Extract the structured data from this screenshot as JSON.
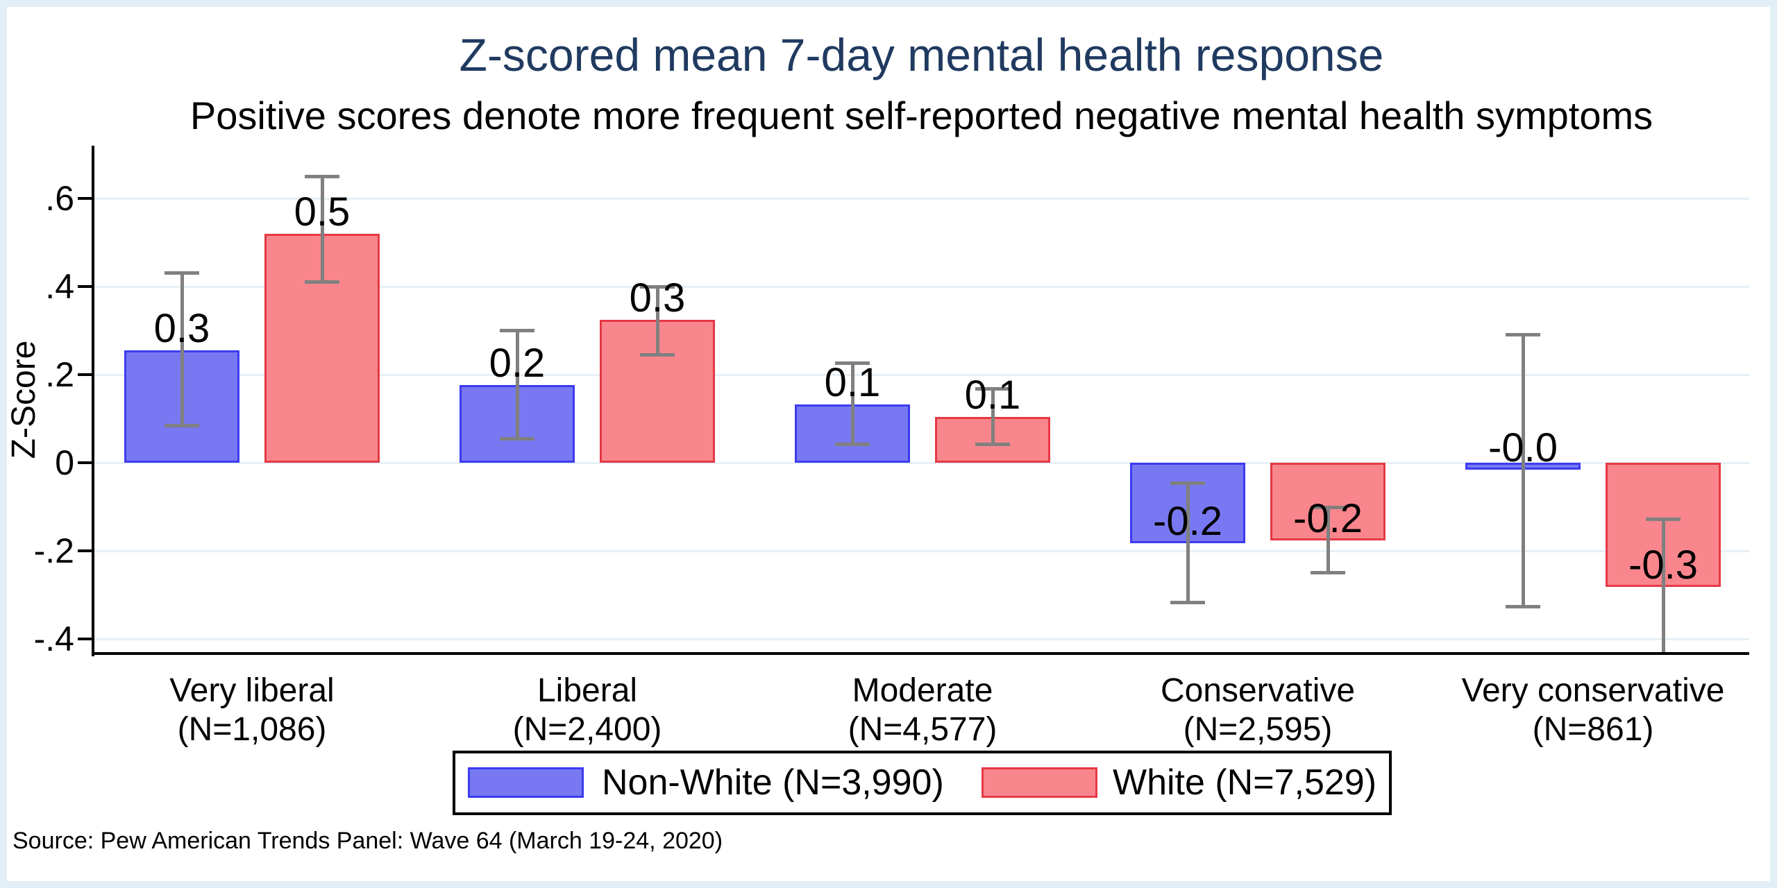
{
  "chart_data": {
    "type": "bar",
    "title": "Z-scored mean 7-day mental health response",
    "subtitle": "Positive scores denote more frequent self-reported negative mental health symptoms",
    "ylabel": "Z-Score",
    "source": "Source: Pew American Trends Panel: Wave 64 (March 19-24, 2020)",
    "grid": true,
    "legend_position": "bottom-center",
    "ylim": [
      -0.433,
      0.72
    ],
    "yticks": [
      0.6,
      0.4,
      0.2,
      0,
      -0.2,
      -0.4
    ],
    "ytick_labels": [
      ".6",
      ".4",
      ".2",
      "0",
      "-.2",
      "-.4"
    ],
    "categories": [
      {
        "label": "Very liberal",
        "n": "(N=1,086)"
      },
      {
        "label": "Liberal",
        "n": "(N=2,400)"
      },
      {
        "label": "Moderate",
        "n": "(N=4,577)"
      },
      {
        "label": "Conservative",
        "n": "(N=2,595)"
      },
      {
        "label": "Very conservative",
        "n": "(N=861)"
      }
    ],
    "series": [
      {
        "name": "Non-White (N=3,990)",
        "fill": "#7879F2",
        "border": "#3C3BF0",
        "values": [
          0.255,
          0.176,
          0.133,
          -0.183,
          -0.015
        ],
        "bar_labels": [
          "0.3",
          "0.2",
          "0.1",
          "-0.2",
          "-0.0"
        ],
        "ci_high": [
          0.43,
          0.3,
          0.226,
          -0.046,
          0.29
        ],
        "ci_low": [
          0.085,
          0.055,
          0.042,
          -0.318,
          -0.326
        ]
      },
      {
        "name": "White (N=7,529)",
        "fill": "#F9868D",
        "border": "#E53945",
        "values": [
          0.52,
          0.324,
          0.104,
          -0.176,
          -0.282
        ],
        "bar_labels": [
          "0.5",
          "0.3",
          "0.1",
          "-0.2",
          "-0.3"
        ],
        "ci_high": [
          0.65,
          0.4,
          0.168,
          -0.101,
          -0.129
        ],
        "ci_low": [
          0.41,
          0.245,
          0.042,
          -0.25,
          -0.435
        ]
      }
    ],
    "colors": {
      "title": "#203A60",
      "text": "#000000",
      "grid": "#E6F0F6",
      "error_bar": "#808080",
      "axis": "#000000",
      "frame_background": "#E3EFF6",
      "plot_background": "#FFFFFF"
    }
  }
}
